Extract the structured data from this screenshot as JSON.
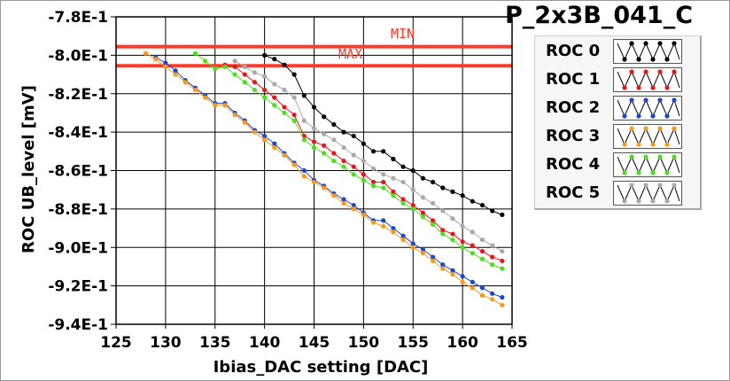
{
  "title": "P_2x3B_041_C",
  "chart_data": {
    "type": "line",
    "title": "P_2x3B_041_C",
    "xlabel": "Ibias_DAC setting [DAC]",
    "ylabel": "ROC UB_level [mV]",
    "xlim": [
      125,
      165
    ],
    "ylim": [
      -0.94,
      -0.78
    ],
    "xticks": [
      125,
      130,
      135,
      140,
      145,
      150,
      155,
      160,
      165
    ],
    "xtick_labels": [
      "125",
      "130",
      "135",
      "140",
      "145",
      "150",
      "155",
      "160",
      "165"
    ],
    "yticks": [
      -0.78,
      -0.8,
      -0.82,
      -0.84,
      -0.86,
      -0.88,
      -0.9,
      -0.92,
      -0.94
    ],
    "ytick_labels": [
      "-7.8E-1",
      "-8.0E-1",
      "-8.2E-1",
      "-8.4E-1",
      "-8.6E-1",
      "-8.8E-1",
      "-9.0E-1",
      "-9.2E-1",
      "-9.4E-1"
    ],
    "grid": true,
    "legend_position": "right",
    "threshold_lines": [
      {
        "label": "MIN",
        "y": -0.7955,
        "color": "#ff3a2a"
      },
      {
        "label": "MAX",
        "y": -0.8055,
        "color": "#ff3a2a"
      }
    ],
    "series": [
      {
        "name": "ROC 0",
        "color": "#000000",
        "x": [
          140,
          141,
          142,
          143,
          144,
          145,
          146,
          147,
          148,
          149,
          150,
          151,
          152,
          153,
          154,
          155,
          156,
          157,
          158,
          159,
          160,
          161,
          162,
          163,
          164
        ],
        "y": [
          -0.8,
          -0.802,
          -0.805,
          -0.81,
          -0.821,
          -0.827,
          -0.832,
          -0.836,
          -0.84,
          -0.842,
          -0.846,
          -0.85,
          -0.85,
          -0.854,
          -0.858,
          -0.86,
          -0.864,
          -0.866,
          -0.869,
          -0.871,
          -0.873,
          -0.876,
          -0.878,
          -0.881,
          -0.883
        ]
      },
      {
        "name": "ROC 1",
        "color": "#e8161b",
        "x": [
          136,
          137,
          138,
          139,
          140,
          141,
          142,
          143,
          144,
          145,
          146,
          147,
          148,
          149,
          150,
          151,
          152,
          153,
          154,
          155,
          156,
          157,
          158,
          159,
          160,
          161,
          162,
          163,
          164
        ],
        "y": [
          -0.805,
          -0.806,
          -0.81,
          -0.814,
          -0.818,
          -0.822,
          -0.827,
          -0.831,
          -0.842,
          -0.845,
          -0.847,
          -0.851,
          -0.855,
          -0.858,
          -0.862,
          -0.866,
          -0.866,
          -0.871,
          -0.875,
          -0.878,
          -0.882,
          -0.886,
          -0.891,
          -0.893,
          -0.897,
          -0.899,
          -0.902,
          -0.905,
          -0.907
        ]
      },
      {
        "name": "ROC 2",
        "color": "#1e46c8",
        "x": [
          129,
          130,
          131,
          132,
          133,
          134,
          135,
          136,
          137,
          138,
          139,
          140,
          141,
          142,
          143,
          144,
          145,
          146,
          147,
          148,
          149,
          150,
          151,
          152,
          153,
          154,
          155,
          156,
          157,
          158,
          159,
          160,
          161,
          162,
          163,
          164
        ],
        "y": [
          -0.801,
          -0.804,
          -0.808,
          -0.813,
          -0.817,
          -0.821,
          -0.825,
          -0.825,
          -0.83,
          -0.834,
          -0.839,
          -0.842,
          -0.846,
          -0.851,
          -0.856,
          -0.86,
          -0.865,
          -0.868,
          -0.872,
          -0.875,
          -0.878,
          -0.882,
          -0.886,
          -0.886,
          -0.89,
          -0.894,
          -0.898,
          -0.901,
          -0.905,
          -0.909,
          -0.912,
          -0.915,
          -0.918,
          -0.921,
          -0.924,
          -0.926
        ]
      },
      {
        "name": "ROC 3",
        "color": "#f59a1e",
        "x": [
          128,
          129,
          130,
          131,
          132,
          133,
          134,
          135,
          136,
          137,
          138,
          139,
          140,
          141,
          142,
          143,
          144,
          145,
          146,
          147,
          148,
          149,
          150,
          151,
          152,
          153,
          154,
          155,
          156,
          157,
          158,
          159,
          160,
          161,
          162,
          163,
          164
        ],
        "y": [
          -0.799,
          -0.802,
          -0.806,
          -0.81,
          -0.814,
          -0.818,
          -0.822,
          -0.826,
          -0.826,
          -0.831,
          -0.835,
          -0.84,
          -0.844,
          -0.848,
          -0.852,
          -0.857,
          -0.863,
          -0.866,
          -0.869,
          -0.873,
          -0.877,
          -0.88,
          -0.883,
          -0.887,
          -0.889,
          -0.892,
          -0.896,
          -0.9,
          -0.903,
          -0.907,
          -0.911,
          -0.914,
          -0.918,
          -0.921,
          -0.925,
          -0.927,
          -0.93
        ]
      },
      {
        "name": "ROC 4",
        "color": "#4ede20",
        "x": [
          133,
          134,
          135,
          136,
          137,
          138,
          139,
          140,
          141,
          142,
          143,
          144,
          145,
          146,
          147,
          148,
          149,
          150,
          151,
          152,
          153,
          154,
          155,
          156,
          157,
          158,
          159,
          160,
          161,
          162,
          163,
          164
        ],
        "y": [
          -0.799,
          -0.803,
          -0.807,
          -0.806,
          -0.81,
          -0.814,
          -0.818,
          -0.822,
          -0.826,
          -0.83,
          -0.834,
          -0.844,
          -0.848,
          -0.851,
          -0.855,
          -0.858,
          -0.862,
          -0.865,
          -0.868,
          -0.869,
          -0.873,
          -0.877,
          -0.88,
          -0.884,
          -0.888,
          -0.893,
          -0.896,
          -0.9,
          -0.903,
          -0.906,
          -0.909,
          -0.911
        ]
      },
      {
        "name": "ROC 5",
        "color": "#a9a9a9",
        "x": [
          137,
          138,
          139,
          140,
          141,
          142,
          143,
          144,
          145,
          146,
          147,
          148,
          149,
          150,
          151,
          152,
          153,
          154,
          155,
          156,
          157,
          158,
          159,
          160,
          161,
          162,
          163,
          164
        ],
        "y": [
          -0.803,
          -0.806,
          -0.809,
          -0.811,
          -0.815,
          -0.818,
          -0.822,
          -0.834,
          -0.838,
          -0.841,
          -0.844,
          -0.848,
          -0.852,
          -0.855,
          -0.859,
          -0.862,
          -0.864,
          -0.866,
          -0.87,
          -0.874,
          -0.877,
          -0.881,
          -0.885,
          -0.889,
          -0.892,
          -0.896,
          -0.899,
          -0.902
        ]
      }
    ]
  }
}
